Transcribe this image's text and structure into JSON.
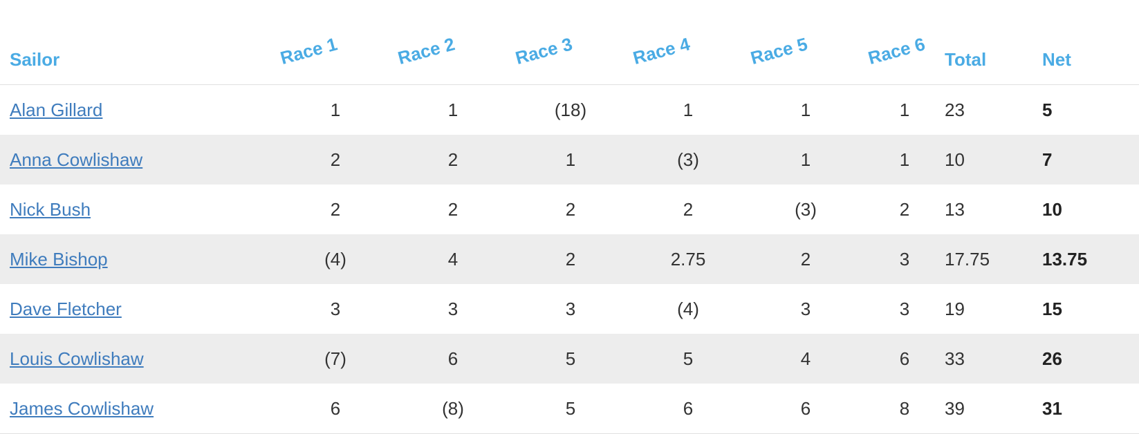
{
  "headers": {
    "sailor": "Sailor",
    "races": [
      "Race 1",
      "Race 2",
      "Race 3",
      "Race 4",
      "Race 5",
      "Race 6"
    ],
    "total": "Total",
    "net": "Net"
  },
  "rows": [
    {
      "sailor": "Alan Gillard",
      "races": [
        "1",
        "1",
        "(18)",
        "1",
        "1",
        "1"
      ],
      "total": "23",
      "net": "5"
    },
    {
      "sailor": "Anna Cowlishaw",
      "races": [
        "2",
        "2",
        "1",
        "(3)",
        "1",
        "1"
      ],
      "total": "10",
      "net": "7"
    },
    {
      "sailor": "Nick Bush",
      "races": [
        "2",
        "2",
        "2",
        "2",
        "(3)",
        "2"
      ],
      "total": "13",
      "net": "10"
    },
    {
      "sailor": "Mike Bishop",
      "races": [
        "(4)",
        "4",
        "2",
        "2.75",
        "2",
        "3"
      ],
      "total": "17.75",
      "net": "13.75"
    },
    {
      "sailor": "Dave Fletcher",
      "races": [
        "3",
        "3",
        "3",
        "(4)",
        "3",
        "3"
      ],
      "total": "19",
      "net": "15"
    },
    {
      "sailor": "Louis Cowlishaw",
      "races": [
        "(7)",
        "6",
        "5",
        "5",
        "4",
        "6"
      ],
      "total": "33",
      "net": "26"
    },
    {
      "sailor": "James Cowlishaw",
      "races": [
        "6",
        "(8)",
        "5",
        "6",
        "6",
        "8"
      ],
      "total": "39",
      "net": "31"
    }
  ],
  "colors": {
    "header_text": "#4aabe4",
    "link": "#3f7cbd",
    "stripe": "#ededed"
  }
}
